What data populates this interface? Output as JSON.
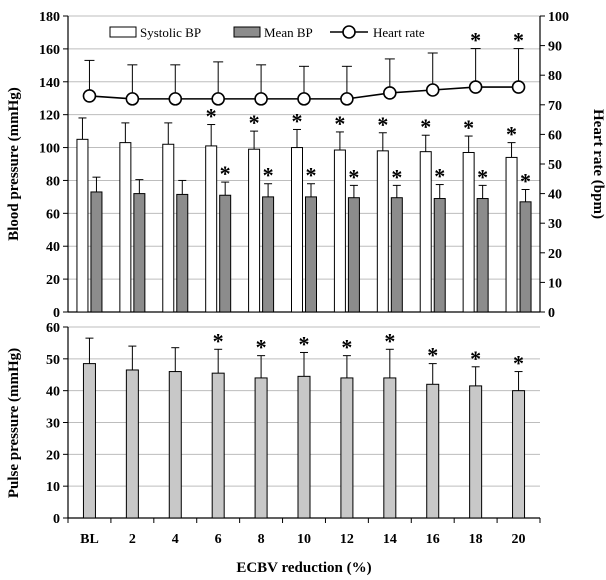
{
  "chart_data": [
    {
      "type": "bar",
      "panel": "top",
      "categories": [
        "BL",
        "2",
        "4",
        "6",
        "8",
        "10",
        "12",
        "14",
        "16",
        "18",
        "20"
      ],
      "ylabel": "Blood pressure (mmHg)",
      "ylim": [
        0,
        180
      ],
      "yticks": [
        "0",
        "20",
        "40",
        "60",
        "80",
        "100",
        "120",
        "140",
        "160",
        "180"
      ],
      "y2label": "Heart rate (bpm)",
      "y2lim": [
        0,
        100
      ],
      "y2ticks": [
        "0",
        "10",
        "20",
        "30",
        "40",
        "50",
        "60",
        "70",
        "80",
        "90",
        "100"
      ],
      "legend_position": "top",
      "series": [
        {
          "name": "Systolic BP",
          "type": "bar",
          "color": "#ffffff",
          "values": [
            105,
            103,
            102,
            101,
            99,
            100,
            98.5,
            98,
            97.5,
            97,
            94
          ],
          "error": [
            13,
            12,
            13,
            13,
            11,
            11,
            11,
            11,
            10,
            10,
            9
          ],
          "significant": [
            false,
            false,
            false,
            true,
            true,
            true,
            true,
            true,
            true,
            true,
            true
          ]
        },
        {
          "name": "Mean BP",
          "type": "bar",
          "color": "#8c8c8c",
          "values": [
            73,
            72,
            71.5,
            71,
            70,
            70,
            69.5,
            69.5,
            69,
            69,
            67
          ],
          "error": [
            9,
            8.5,
            8.5,
            8,
            8,
            8,
            7.5,
            7.5,
            8.5,
            8,
            7.5
          ],
          "significant": [
            false,
            false,
            false,
            true,
            true,
            true,
            true,
            true,
            true,
            true,
            true
          ]
        },
        {
          "name": "Heart rate",
          "type": "line",
          "axis": "right",
          "color": "#000000",
          "values": [
            73,
            72,
            72,
            72,
            72,
            72,
            72,
            74,
            75,
            76,
            76
          ],
          "error": [
            12,
            11.5,
            11.5,
            12.5,
            11.5,
            11,
            11,
            11.5,
            12.5,
            13,
            13
          ],
          "significant": [
            false,
            false,
            false,
            false,
            false,
            false,
            false,
            false,
            false,
            true,
            true
          ]
        }
      ]
    },
    {
      "type": "bar",
      "panel": "bottom",
      "categories": [
        "BL",
        "2",
        "4",
        "6",
        "8",
        "10",
        "12",
        "14",
        "16",
        "18",
        "20"
      ],
      "xlabel": "ECBV reduction (%)",
      "ylabel": "Pulse pressure (mmHg)",
      "ylim": [
        0,
        60
      ],
      "yticks": [
        "0",
        "10",
        "20",
        "30",
        "40",
        "50",
        "60"
      ],
      "series": [
        {
          "type": "bar",
          "color": "#c8c8c8",
          "values": [
            48.5,
            46.5,
            46,
            45.5,
            44,
            44.5,
            44,
            44,
            42,
            41.5,
            40
          ],
          "error": [
            8,
            7.5,
            7.5,
            7.5,
            7,
            7.5,
            7,
            9,
            6.5,
            6,
            6
          ],
          "significant": [
            false,
            false,
            false,
            true,
            true,
            true,
            true,
            true,
            true,
            true,
            true
          ]
        }
      ]
    }
  ],
  "significance_marker": "*"
}
